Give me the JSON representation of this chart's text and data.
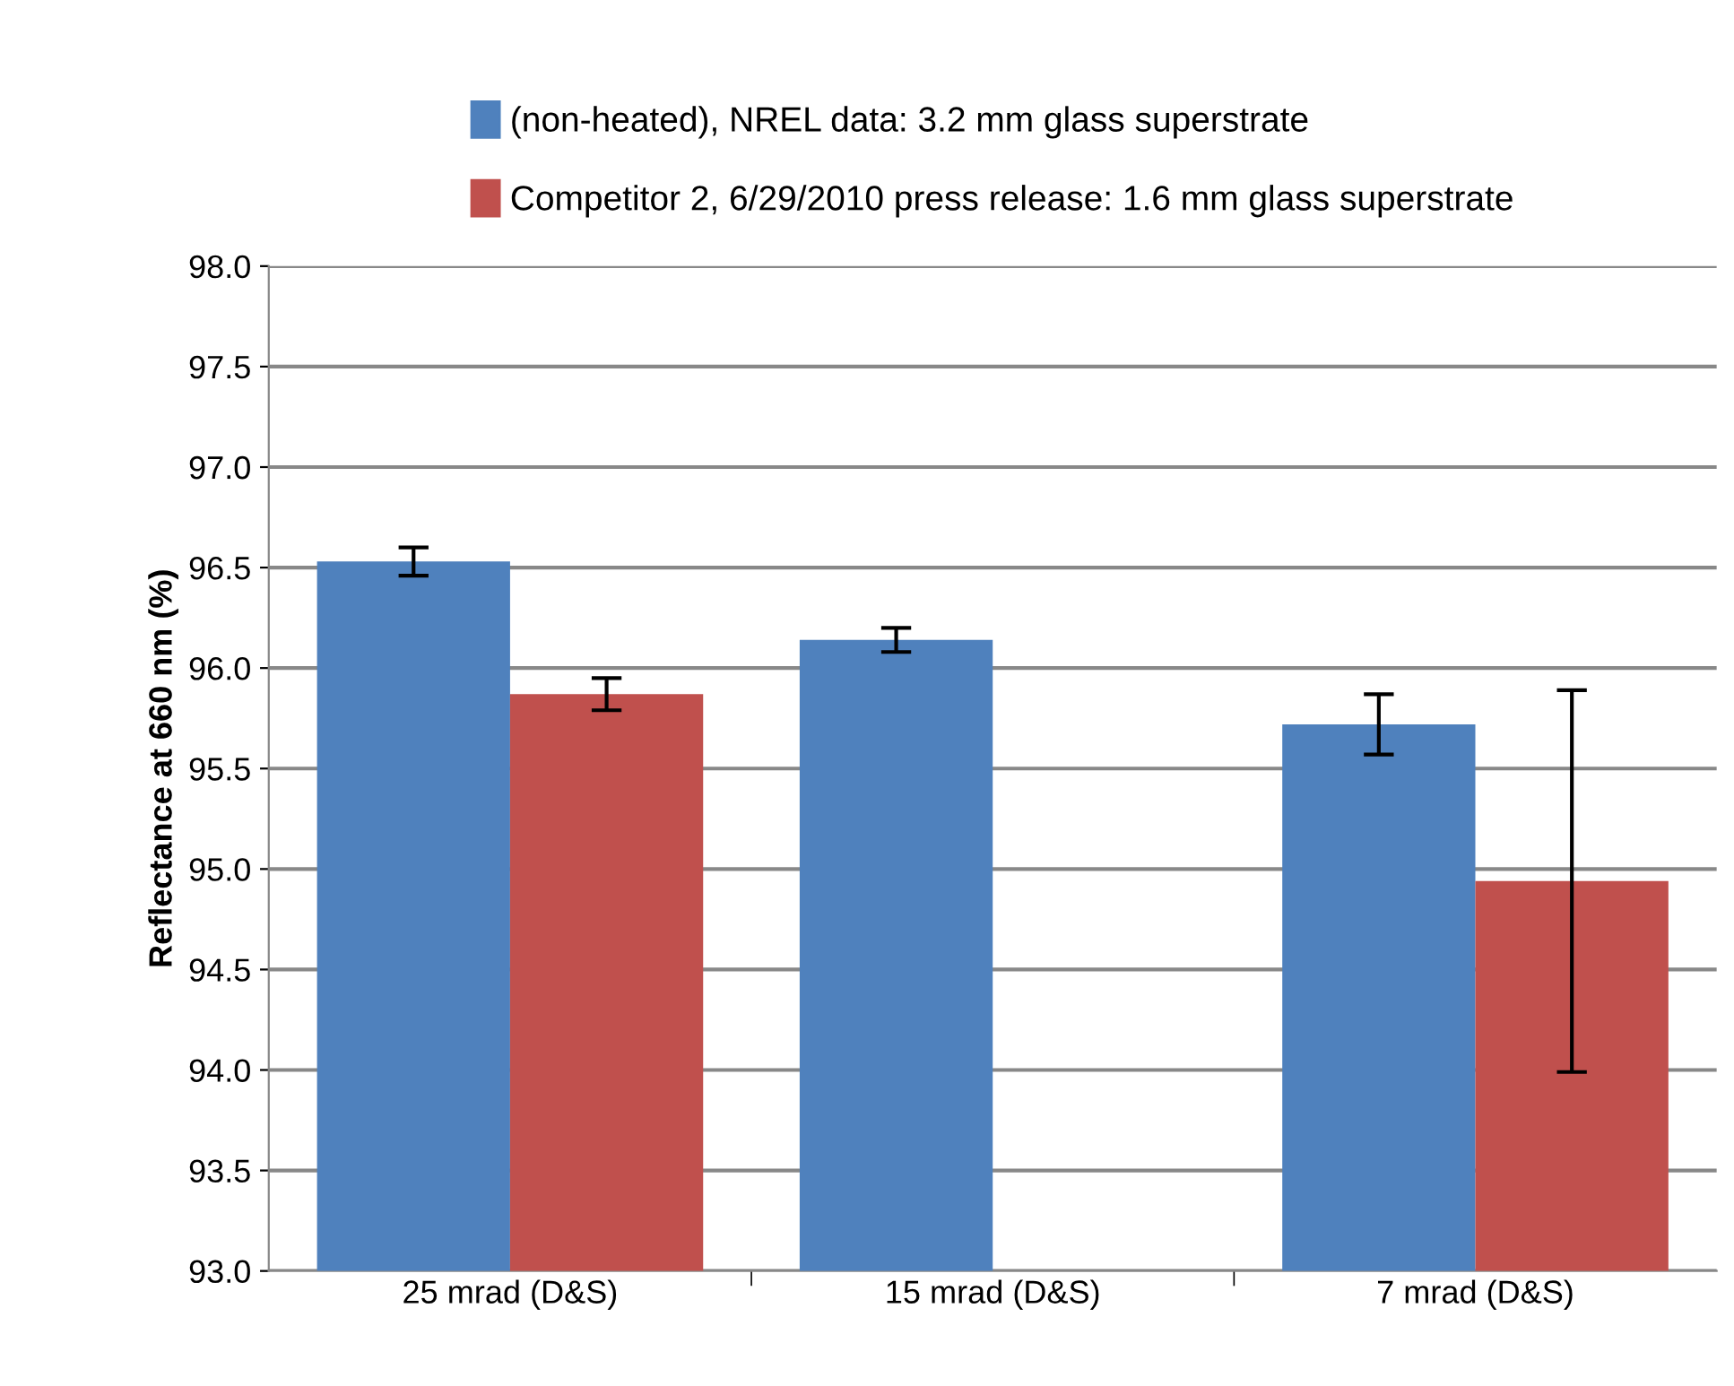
{
  "chart_data": {
    "type": "bar",
    "ylabel": "Reflectance at 660 nm (%)",
    "categories": [
      "25 mrad (D&S)",
      "15 mrad (D&S)",
      "7 mrad (D&S)"
    ],
    "series": [
      {
        "name": "(non-heated), NREL data: 3.2 mm glass superstrate",
        "color": "#4f81bd",
        "values": [
          96.53,
          96.14,
          95.72
        ],
        "errors": [
          0.07,
          0.06,
          0.15
        ]
      },
      {
        "name": "Competitor 2, 6/29/2010 press release: 1.6 mm glass superstrate",
        "color": "#c0504d",
        "values": [
          95.87,
          null,
          94.94
        ],
        "errors": [
          0.08,
          null,
          0.95
        ]
      }
    ],
    "ylim": [
      93.0,
      98.0
    ],
    "yticks": [
      {
        "value": 93.0,
        "label": "93.0"
      },
      {
        "value": 93.5,
        "label": "93.5"
      },
      {
        "value": 94.0,
        "label": "94.0"
      },
      {
        "value": 94.5,
        "label": "94.5"
      },
      {
        "value": 95.0,
        "label": "95.0"
      },
      {
        "value": 95.5,
        "label": "95.5"
      },
      {
        "value": 96.0,
        "label": "96.0"
      },
      {
        "value": 96.5,
        "label": "96.5"
      },
      {
        "value": 97.0,
        "label": "97.0"
      },
      {
        "value": 97.5,
        "label": "97.5"
      },
      {
        "value": 98.0,
        "label": "98.0"
      }
    ],
    "grid": "y",
    "legend": "top"
  }
}
